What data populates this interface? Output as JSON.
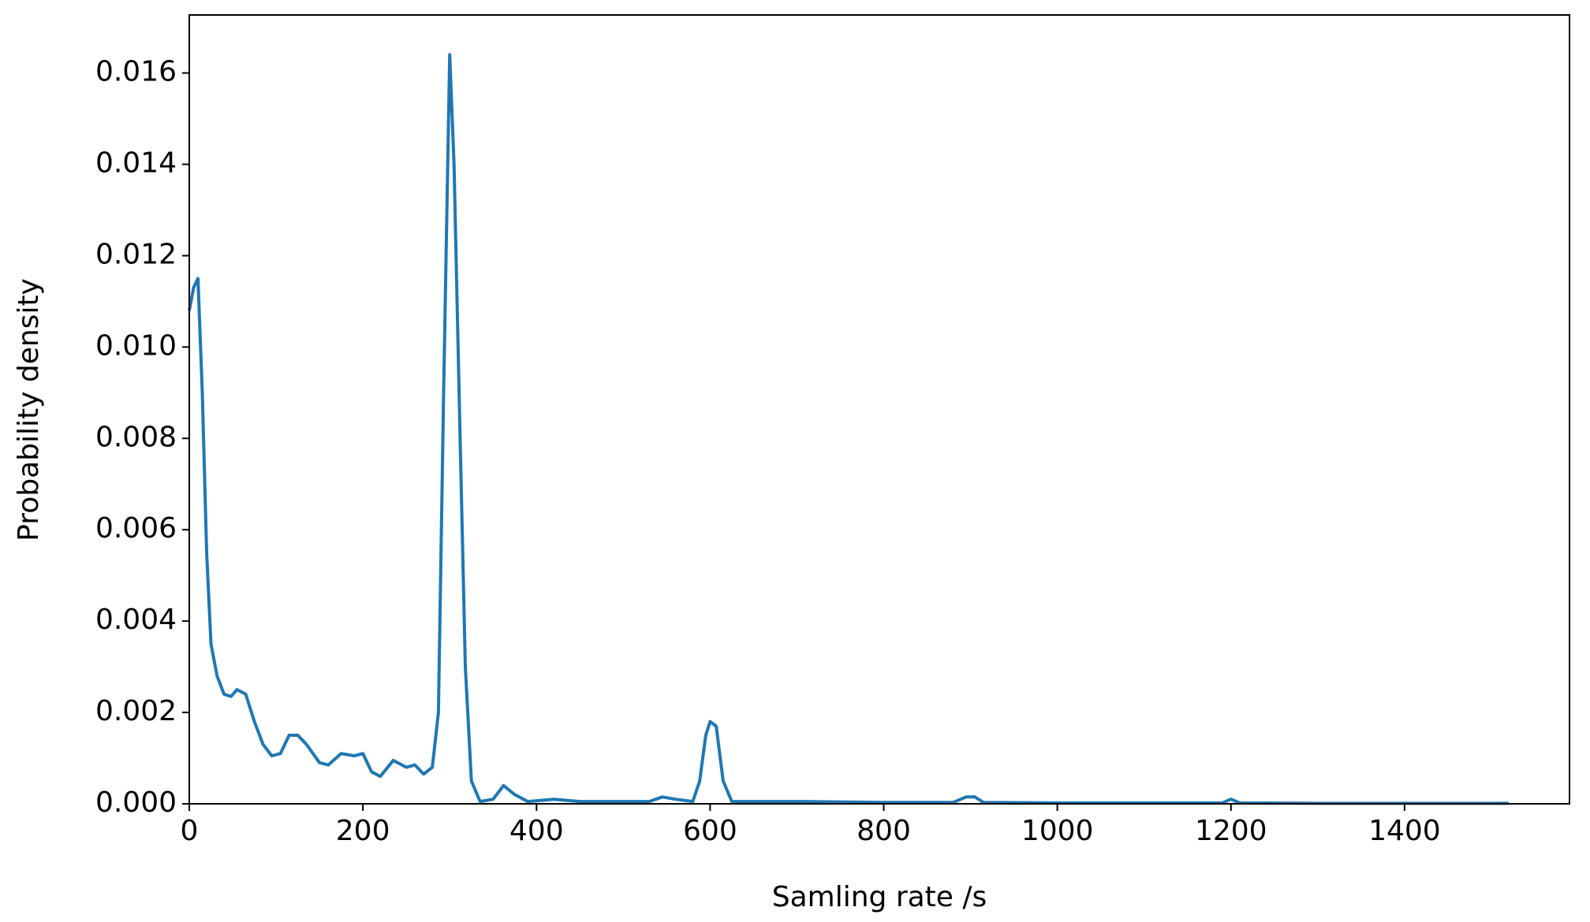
{
  "chart_data": {
    "type": "line",
    "xlabel": "Samling rate /s",
    "ylabel": "Probability density",
    "xlim": [
      0,
      1590
    ],
    "ylim": [
      0,
      0.01727
    ],
    "xticks": [
      0,
      200,
      400,
      600,
      800,
      1000,
      1200,
      1400
    ],
    "yticks": [
      {
        "value": 0,
        "label": "0.000"
      },
      {
        "value": 0.002,
        "label": "0.002"
      },
      {
        "value": 0.004,
        "label": "0.004"
      },
      {
        "value": 0.006,
        "label": "0.006"
      },
      {
        "value": 0.008,
        "label": "0.008"
      },
      {
        "value": 0.01,
        "label": "0.010"
      },
      {
        "value": 0.012,
        "label": "0.012"
      },
      {
        "value": 0.014,
        "label": "0.014"
      },
      {
        "value": 0.016,
        "label": "0.016"
      }
    ],
    "grid": false,
    "series": [
      {
        "color": "#1f77b4",
        "x": [
          0,
          5,
          10,
          15,
          20,
          25,
          32,
          40,
          48,
          55,
          65,
          75,
          85,
          95,
          105,
          115,
          125,
          135,
          150,
          160,
          175,
          190,
          200,
          210,
          220,
          235,
          250,
          260,
          270,
          280,
          287,
          293,
          300,
          305,
          312,
          318,
          325,
          335,
          350,
          362,
          375,
          390,
          420,
          450,
          500,
          530,
          545,
          560,
          580,
          588,
          595,
          600,
          607,
          615,
          625,
          700,
          800,
          880,
          895,
          905,
          915,
          1000,
          1100,
          1190,
          1200,
          1210,
          1300,
          1400,
          1520
        ],
        "values": [
          0.0108,
          0.0113,
          0.0115,
          0.009,
          0.0055,
          0.0035,
          0.0028,
          0.0024,
          0.00235,
          0.0025,
          0.0024,
          0.0018,
          0.0013,
          0.00105,
          0.0011,
          0.0015,
          0.0015,
          0.0013,
          0.0009,
          0.00085,
          0.0011,
          0.00105,
          0.0011,
          0.0007,
          0.0006,
          0.00095,
          0.0008,
          0.00085,
          0.00065,
          0.0008,
          0.002,
          0.009,
          0.0164,
          0.014,
          0.008,
          0.003,
          0.0005,
          5e-05,
          0.0001,
          0.0004,
          0.0002,
          5e-05,
          0.0001,
          5e-05,
          5e-05,
          5e-05,
          0.00015,
          0.0001,
          5e-05,
          0.0005,
          0.0015,
          0.0018,
          0.0017,
          0.0005,
          5e-05,
          5e-05,
          3e-05,
          3e-05,
          0.00015,
          0.00015,
          3e-05,
          2e-05,
          2e-05,
          2e-05,
          0.0001,
          2e-05,
          1e-05,
          1e-05,
          1e-05
        ]
      }
    ]
  }
}
